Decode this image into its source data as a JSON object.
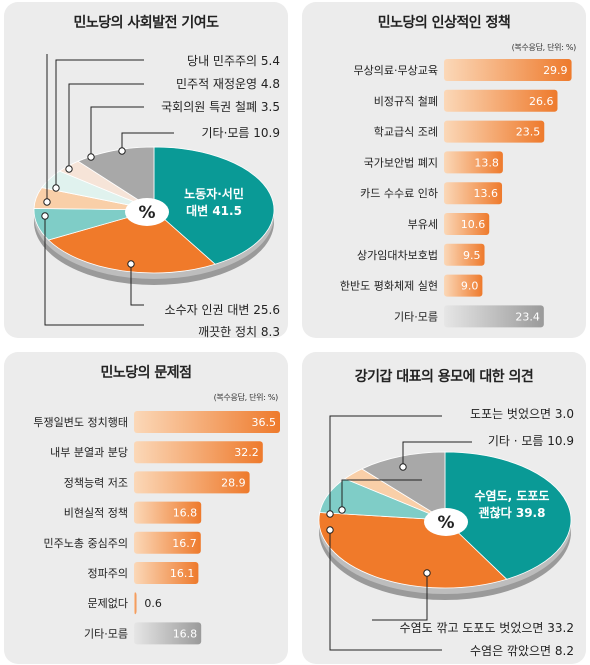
{
  "charts": [
    {
      "id": "p1",
      "title": "민노당의 사회발전 기여도",
      "chart_data": {
        "type": "pie",
        "title": "민노당의 사회발전 기여도",
        "center_label": "%",
        "slices": [
          {
            "label": "노동자·서민 대변",
            "value": 41.5,
            "color": "#0a9a96"
          },
          {
            "label": "소수자 인권 대변",
            "value": 25.6,
            "color": "#f07a2a"
          },
          {
            "label": "깨끗한 정치",
            "value": 8.3,
            "color": "#7fcdc7"
          },
          {
            "label": "당내 민주주의",
            "value": 5.4,
            "color": "#f9cfa8"
          },
          {
            "label": "민주적 재정운영",
            "value": 4.8,
            "color": "#e0f2ee"
          },
          {
            "label": "국회의원 특권 철폐",
            "value": 3.5,
            "color": "#f6e4d8"
          },
          {
            "label": "기타·모름",
            "value": 10.9,
            "color": "#a8a8a8"
          }
        ],
        "inner_label_lines": [
          "노동자·서민",
          "대변 41.5"
        ],
        "callouts": [
          "당내 민주주의 5.4",
          "민주적 재정운영 4.8",
          "국회의원 특권 철폐 3.5",
          "기타·모름 10.9",
          "소수자 인권 대변 25.6",
          "깨끗한 정치 8.3"
        ]
      }
    },
    {
      "id": "p2",
      "title": "민노당의 인상적인 정책",
      "unit_note": "(복수응답, 단위: %)",
      "chart_data": {
        "type": "bar",
        "title": "민노당의 인상적인 정책",
        "categories": [
          "무상의료·무상교육",
          "비정규직 철폐",
          "학교급식 조례",
          "국가보안법 폐지",
          "카드 수수료 인하",
          "부유세",
          "상가임대차보호법",
          "한반도 평화체제 실현",
          "기타·모름"
        ],
        "values": [
          29.9,
          26.6,
          23.5,
          13.8,
          13.6,
          10.6,
          9.5,
          9.0,
          23.4
        ],
        "value_labels": [
          "29.9",
          "26.6",
          "23.5",
          "13.8",
          "13.6",
          "10.6",
          "9.5",
          "9.0",
          "23.4"
        ],
        "highlight_last_gray": true,
        "xlim": [
          0,
          30
        ]
      }
    },
    {
      "id": "p3",
      "title": "민노당의 문제점",
      "unit_note": "(복수응답, 단위: %)",
      "chart_data": {
        "type": "bar",
        "title": "민노당의 문제점",
        "categories": [
          "투쟁일변도 정치행태",
          "내부 분열과 분당",
          "정책능력 저조",
          "비현실적 정책",
          "민주노총 중심주의",
          "정파주의",
          "문제없다",
          "기타·모름"
        ],
        "values": [
          36.5,
          32.2,
          28.9,
          16.8,
          16.7,
          16.1,
          0.6,
          16.8
        ],
        "value_labels": [
          "36.5",
          "32.2",
          "28.9",
          "16.8",
          "16.7",
          "16.1",
          "0.6",
          "16.8"
        ],
        "highlight_last_gray": true,
        "xlim": [
          0,
          36.5
        ]
      }
    },
    {
      "id": "p4",
      "title": "강기갑 대표의 용모에 대한 의견",
      "chart_data": {
        "type": "pie",
        "title": "강기갑 대표의 용모에 대한 의견",
        "center_label": "%",
        "slices": [
          {
            "label": "수염도, 도포도 괜찮다",
            "value": 39.8,
            "color": "#0a9a96"
          },
          {
            "label": "수염도 깎고 도포도 벗었으면",
            "value": 33.2,
            "color": "#f07a2a"
          },
          {
            "label": "수염은 깎았으면",
            "value": 8.2,
            "color": "#7fcdc7"
          },
          {
            "label": "도포는 벗었으면",
            "value": 3.0,
            "color": "#f9cfa8"
          },
          {
            "label": "기타·모름",
            "value": 10.9,
            "color": "#a8a8a8"
          }
        ],
        "inner_label_lines": [
          "수염도, 도포도",
          "괜찮다 39.8"
        ],
        "callouts": [
          "도포는 벗었으면 3.0",
          "기타 · 모름 10.9",
          "수염도 깎고 도포도 벗었으면 33.2",
          "수염은 깎았으면 8.2"
        ]
      }
    }
  ]
}
